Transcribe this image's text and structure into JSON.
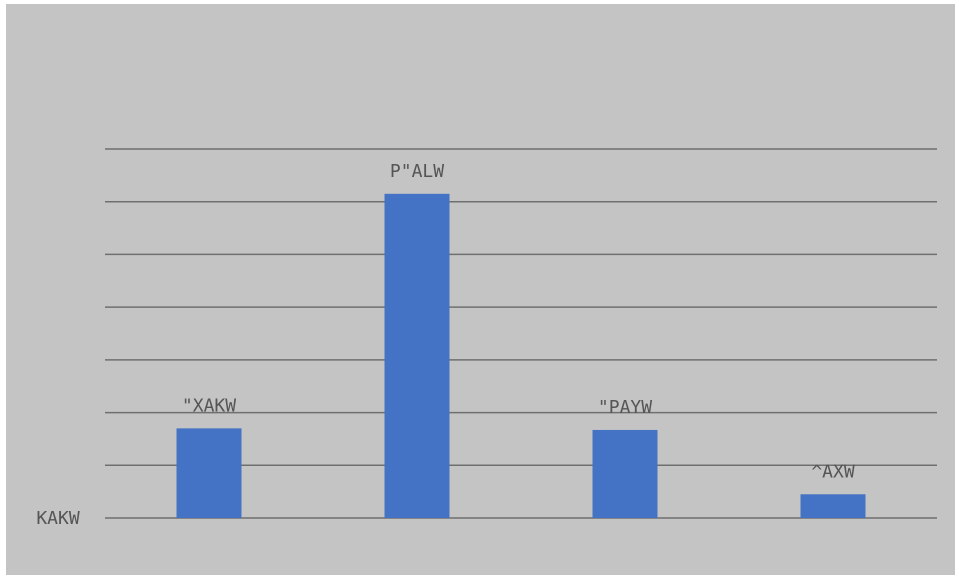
{
  "chart_data": {
    "type": "bar",
    "categories": [
      "",
      "",
      "",
      ""
    ],
    "values": [
      1.7,
      6.15,
      1.67,
      0.45
    ],
    "data_labels": [
      "\"XAKW",
      "P\"ALW",
      "\"PAYW",
      "^AXW"
    ],
    "y_tick_labels": [
      "KAKW"
    ],
    "ylim": [
      0,
      7
    ],
    "gridline_count": 8,
    "grid": true,
    "legend": "none",
    "title": "",
    "xlabel": "",
    "ylabel": "",
    "colors": {
      "bar": "#4472c4",
      "background": "#c4c4c4",
      "gridline": "#6f6f6f",
      "text": "#555555"
    }
  }
}
